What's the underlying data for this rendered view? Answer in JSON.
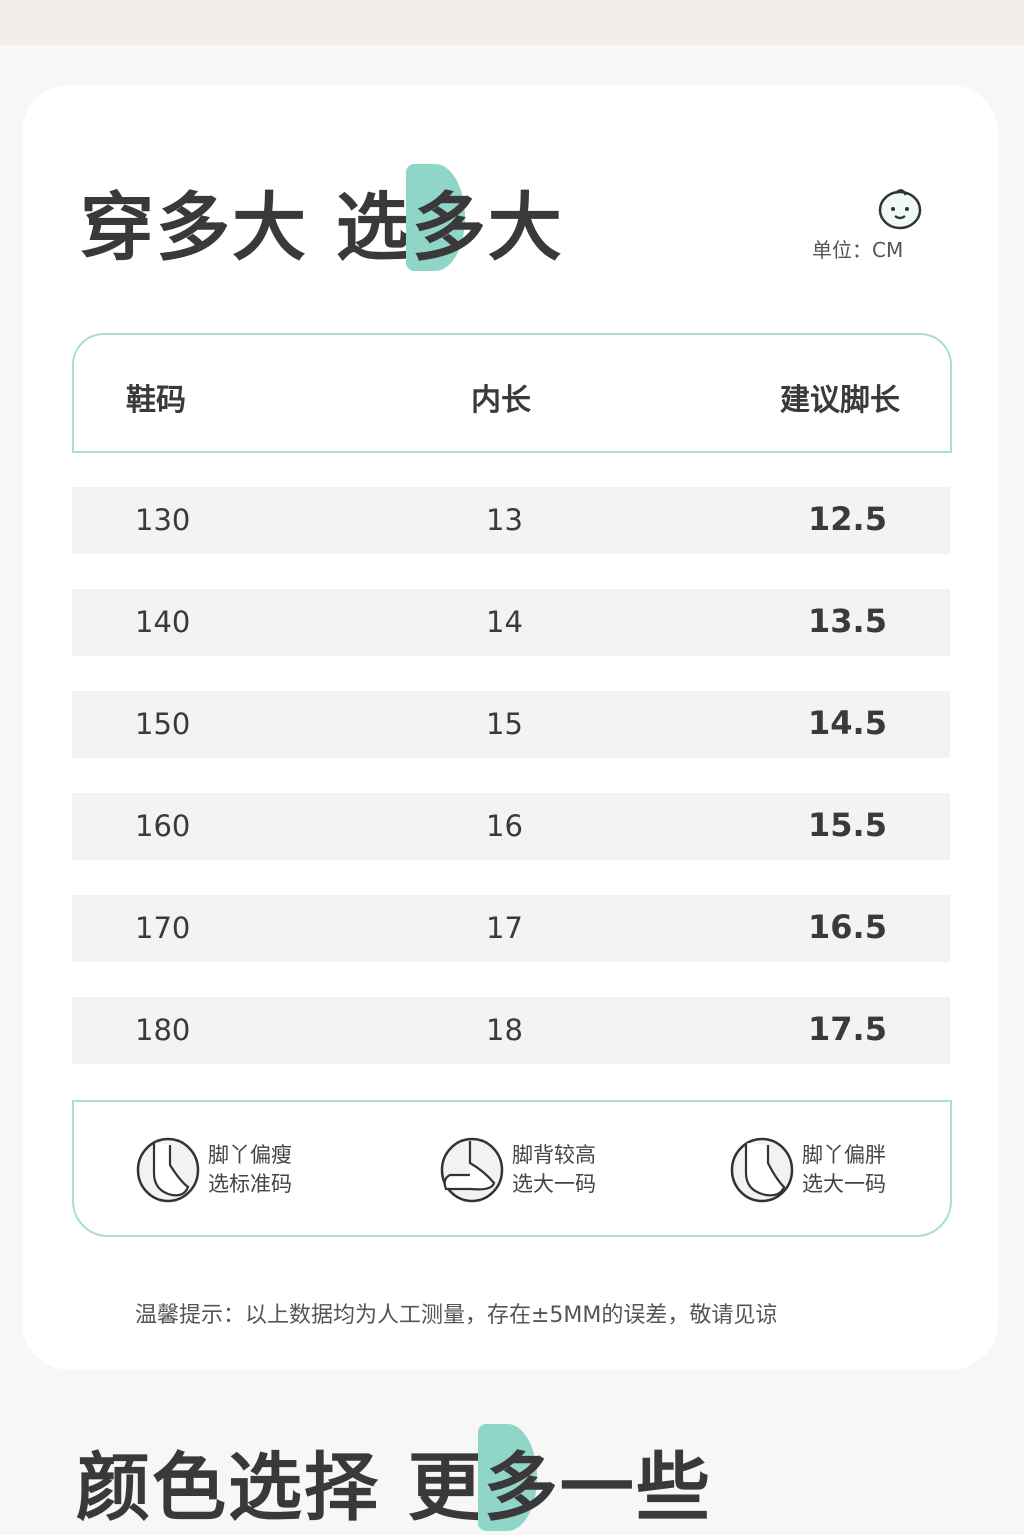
{
  "title_size": {
    "part1": "穿多大 选",
    "highlight": "多",
    "part2": "大"
  },
  "unit_label": "单位：CM",
  "accent_color": "#8fd6c9",
  "table": {
    "headers": [
      "鞋码",
      "内长",
      "建议脚长"
    ],
    "rows": [
      [
        "130",
        "13",
        "12.5"
      ],
      [
        "140",
        "14",
        "13.5"
      ],
      [
        "150",
        "15",
        "14.5"
      ],
      [
        "160",
        "16",
        "15.5"
      ],
      [
        "170",
        "17",
        "16.5"
      ],
      [
        "180",
        "18",
        "17.5"
      ]
    ]
  },
  "tips": [
    {
      "icon": "foot-thin-icon",
      "line1": "脚丫偏瘦",
      "line2": "选标准码"
    },
    {
      "icon": "foot-high-instep-icon",
      "line1": "脚背较高",
      "line2": "选大一码"
    },
    {
      "icon": "foot-wide-icon",
      "line1": "脚丫偏胖",
      "line2": "选大一码"
    }
  ],
  "note": "温馨提示：以上数据均为人工测量，存在±5MM的误差，敬请见谅",
  "title_color": {
    "part1": "颜色选择 更",
    "highlight": "多",
    "part2": "一些"
  }
}
